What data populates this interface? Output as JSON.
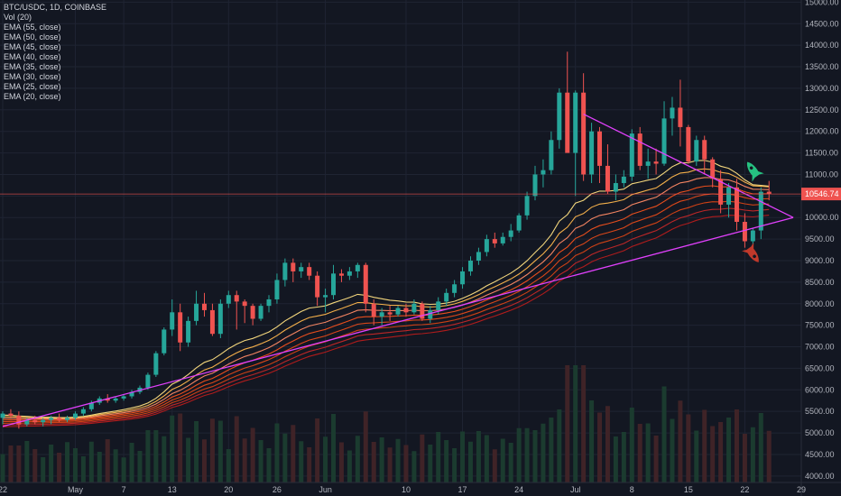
{
  "chart_data": {
    "type": "candlestick",
    "symbol_line": "BTC/USDC, 1D, COINBASE",
    "legend": [
      "Vol (20)",
      "EMA (55, close)",
      "EMA (50, close)",
      "EMA (45, close)",
      "EMA (40, close)",
      "EMA (35, close)",
      "EMA (30, close)",
      "EMA (25, close)",
      "EMA (20, close)"
    ],
    "y_ticks": [
      4000,
      4500,
      5000,
      5500,
      6000,
      6500,
      7000,
      7500,
      8000,
      8500,
      9000,
      9500,
      10000,
      10500,
      11000,
      11500,
      12000,
      12500,
      13000,
      13500,
      14000,
      14500,
      15000
    ],
    "y_tick_labels": [
      "4000.00",
      "4500.00",
      "5000.00",
      "5500.00",
      "6000.00",
      "6500.00",
      "7000.00",
      "7500.00",
      "8000.00",
      "8500.00",
      "9000.00",
      "9500.00",
      "10000.00",
      "10500.00",
      "11000.00",
      "11500.00",
      "12000.00",
      "12500.00",
      "13000.00",
      "13500.00",
      "14000.00",
      "14500.00",
      "15000.00"
    ],
    "ylim": [
      3850,
      15050
    ],
    "x_axis_labels": [
      {
        "label": "22",
        "day": 0
      },
      {
        "label": "May",
        "day": 9
      },
      {
        "label": "7",
        "day": 15
      },
      {
        "label": "13",
        "day": 21
      },
      {
        "label": "20",
        "day": 28
      },
      {
        "label": "26",
        "day": 34
      },
      {
        "label": "Jun",
        "day": 40
      },
      {
        "label": "10",
        "day": 50
      },
      {
        "label": "17",
        "day": 57
      },
      {
        "label": "24",
        "day": 64
      },
      {
        "label": "Jul",
        "day": 71
      },
      {
        "label": "8",
        "day": 78
      },
      {
        "label": "15",
        "day": 85
      },
      {
        "label": "22",
        "day": 92
      },
      {
        "label": "29",
        "day": 99
      }
    ],
    "xlim_days": [
      0,
      99
    ],
    "current_price": 10546.74,
    "current_price_label": "10546.74",
    "candles": [
      {
        "o": 5350,
        "h": 5500,
        "l": 5200,
        "c": 5450
      },
      {
        "o": 5450,
        "h": 5550,
        "l": 5350,
        "c": 5400
      },
      {
        "o": 5400,
        "h": 5500,
        "l": 5100,
        "c": 5200
      },
      {
        "o": 5200,
        "h": 5350,
        "l": 5150,
        "c": 5300
      },
      {
        "o": 5300,
        "h": 5400,
        "l": 5200,
        "c": 5250
      },
      {
        "o": 5250,
        "h": 5350,
        "l": 5150,
        "c": 5300
      },
      {
        "o": 5300,
        "h": 5400,
        "l": 5200,
        "c": 5350
      },
      {
        "o": 5350,
        "h": 5450,
        "l": 5250,
        "c": 5300
      },
      {
        "o": 5300,
        "h": 5400,
        "l": 5250,
        "c": 5350
      },
      {
        "o": 5350,
        "h": 5500,
        "l": 5300,
        "c": 5450
      },
      {
        "o": 5450,
        "h": 5600,
        "l": 5400,
        "c": 5550
      },
      {
        "o": 5550,
        "h": 5750,
        "l": 5500,
        "c": 5700
      },
      {
        "o": 5700,
        "h": 5850,
        "l": 5650,
        "c": 5800
      },
      {
        "o": 5800,
        "h": 5900,
        "l": 5700,
        "c": 5750
      },
      {
        "o": 5750,
        "h": 5850,
        "l": 5700,
        "c": 5800
      },
      {
        "o": 5800,
        "h": 5900,
        "l": 5750,
        "c": 5850
      },
      {
        "o": 5850,
        "h": 6000,
        "l": 5800,
        "c": 5950
      },
      {
        "o": 5950,
        "h": 6100,
        "l": 5900,
        "c": 6050
      },
      {
        "o": 6050,
        "h": 6400,
        "l": 6000,
        "c": 6350
      },
      {
        "o": 6350,
        "h": 6900,
        "l": 6300,
        "c": 6850
      },
      {
        "o": 6850,
        "h": 7450,
        "l": 6800,
        "c": 7400
      },
      {
        "o": 7400,
        "h": 8100,
        "l": 7250,
        "c": 7800
      },
      {
        "o": 7800,
        "h": 8000,
        "l": 6900,
        "c": 7100
      },
      {
        "o": 7100,
        "h": 7700,
        "l": 7000,
        "c": 7600
      },
      {
        "o": 7600,
        "h": 8300,
        "l": 7500,
        "c": 8000
      },
      {
        "o": 8000,
        "h": 8250,
        "l": 7700,
        "c": 7850
      },
      {
        "o": 7850,
        "h": 8000,
        "l": 7250,
        "c": 7300
      },
      {
        "o": 7300,
        "h": 8100,
        "l": 7200,
        "c": 8000
      },
      {
        "o": 8000,
        "h": 8300,
        "l": 7900,
        "c": 8200
      },
      {
        "o": 8200,
        "h": 8300,
        "l": 7400,
        "c": 8050
      },
      {
        "o": 8050,
        "h": 8100,
        "l": 7550,
        "c": 7950
      },
      {
        "o": 7950,
        "h": 8000,
        "l": 7500,
        "c": 7650
      },
      {
        "o": 7650,
        "h": 8000,
        "l": 7600,
        "c": 7950
      },
      {
        "o": 7950,
        "h": 8200,
        "l": 7800,
        "c": 8100
      },
      {
        "o": 8100,
        "h": 8700,
        "l": 8000,
        "c": 8550
      },
      {
        "o": 8550,
        "h": 9050,
        "l": 8400,
        "c": 8950
      },
      {
        "o": 8950,
        "h": 9050,
        "l": 8500,
        "c": 8750
      },
      {
        "o": 8750,
        "h": 8950,
        "l": 8600,
        "c": 8850
      },
      {
        "o": 8850,
        "h": 8950,
        "l": 8550,
        "c": 8650
      },
      {
        "o": 8650,
        "h": 8750,
        "l": 7950,
        "c": 8150
      },
      {
        "o": 8150,
        "h": 8350,
        "l": 7800,
        "c": 8200
      },
      {
        "o": 8200,
        "h": 8900,
        "l": 8100,
        "c": 8700
      },
      {
        "o": 8700,
        "h": 8800,
        "l": 8500,
        "c": 8650
      },
      {
        "o": 8650,
        "h": 8850,
        "l": 8550,
        "c": 8750
      },
      {
        "o": 8750,
        "h": 8950,
        "l": 8600,
        "c": 8900
      },
      {
        "o": 8900,
        "h": 8950,
        "l": 7800,
        "c": 8000
      },
      {
        "o": 8000,
        "h": 8100,
        "l": 7500,
        "c": 7700
      },
      {
        "o": 7700,
        "h": 7900,
        "l": 7500,
        "c": 7800
      },
      {
        "o": 7800,
        "h": 7950,
        "l": 7600,
        "c": 7750
      },
      {
        "o": 7750,
        "h": 7950,
        "l": 7700,
        "c": 7900
      },
      {
        "o": 7900,
        "h": 8000,
        "l": 7700,
        "c": 7800
      },
      {
        "o": 7800,
        "h": 8100,
        "l": 7750,
        "c": 8000
      },
      {
        "o": 8000,
        "h": 8050,
        "l": 7600,
        "c": 7650
      },
      {
        "o": 7650,
        "h": 7950,
        "l": 7550,
        "c": 7850
      },
      {
        "o": 7850,
        "h": 8150,
        "l": 7750,
        "c": 8050
      },
      {
        "o": 8050,
        "h": 8350,
        "l": 7950,
        "c": 8250
      },
      {
        "o": 8250,
        "h": 8550,
        "l": 8150,
        "c": 8450
      },
      {
        "o": 8450,
        "h": 8850,
        "l": 8350,
        "c": 8750
      },
      {
        "o": 8750,
        "h": 9100,
        "l": 8650,
        "c": 9000
      },
      {
        "o": 9000,
        "h": 9300,
        "l": 8900,
        "c": 9200
      },
      {
        "o": 9200,
        "h": 9600,
        "l": 9100,
        "c": 9500
      },
      {
        "o": 9500,
        "h": 9650,
        "l": 9300,
        "c": 9400
      },
      {
        "o": 9400,
        "h": 9650,
        "l": 9350,
        "c": 9550
      },
      {
        "o": 9550,
        "h": 9850,
        "l": 9450,
        "c": 9700
      },
      {
        "o": 9700,
        "h": 10100,
        "l": 9650,
        "c": 10050
      },
      {
        "o": 10050,
        "h": 10600,
        "l": 9950,
        "c": 10500
      },
      {
        "o": 10500,
        "h": 11200,
        "l": 10400,
        "c": 11000
      },
      {
        "o": 11000,
        "h": 11350,
        "l": 10700,
        "c": 11100
      },
      {
        "o": 11100,
        "h": 12000,
        "l": 11000,
        "c": 11800
      },
      {
        "o": 11800,
        "h": 13000,
        "l": 11600,
        "c": 12900
      },
      {
        "o": 12900,
        "h": 13850,
        "l": 11600,
        "c": 11500
      },
      {
        "o": 11500,
        "h": 12950,
        "l": 10500,
        "c": 12900
      },
      {
        "o": 12900,
        "h": 13350,
        "l": 10850,
        "c": 11000
      },
      {
        "o": 11000,
        "h": 12200,
        "l": 10800,
        "c": 12000
      },
      {
        "o": 12000,
        "h": 12100,
        "l": 10800,
        "c": 11200
      },
      {
        "o": 11200,
        "h": 11700,
        "l": 10550,
        "c": 10600
      },
      {
        "o": 10600,
        "h": 11000,
        "l": 10400,
        "c": 10800
      },
      {
        "o": 10800,
        "h": 11100,
        "l": 10700,
        "c": 10950
      },
      {
        "o": 10950,
        "h": 12050,
        "l": 10850,
        "c": 11950
      },
      {
        "o": 11950,
        "h": 12100,
        "l": 11100,
        "c": 11200
      },
      {
        "o": 11200,
        "h": 11600,
        "l": 10900,
        "c": 11300
      },
      {
        "o": 11300,
        "h": 11600,
        "l": 11000,
        "c": 11250
      },
      {
        "o": 11250,
        "h": 12700,
        "l": 11200,
        "c": 12300
      },
      {
        "o": 12300,
        "h": 12800,
        "l": 11900,
        "c": 12550
      },
      {
        "o": 12550,
        "h": 13200,
        "l": 11650,
        "c": 12100
      },
      {
        "o": 12100,
        "h": 12150,
        "l": 11250,
        "c": 11300
      },
      {
        "o": 11300,
        "h": 11900,
        "l": 11200,
        "c": 11800
      },
      {
        "o": 11800,
        "h": 11900,
        "l": 11000,
        "c": 11350
      },
      {
        "o": 11350,
        "h": 11400,
        "l": 10700,
        "c": 10900
      },
      {
        "o": 10900,
        "h": 11100,
        "l": 10100,
        "c": 10300
      },
      {
        "o": 10300,
        "h": 10800,
        "l": 10000,
        "c": 10700
      },
      {
        "o": 10700,
        "h": 10900,
        "l": 9700,
        "c": 9900
      },
      {
        "o": 9900,
        "h": 10100,
        "l": 9300,
        "c": 9450
      },
      {
        "o": 9450,
        "h": 9750,
        "l": 9100,
        "c": 9700
      },
      {
        "o": 9700,
        "h": 10700,
        "l": 9500,
        "c": 10600
      },
      {
        "o": 10600,
        "h": 10850,
        "l": 10400,
        "c": 10550
      }
    ],
    "trendlines": [
      {
        "name": "upper",
        "from": {
          "day": 72,
          "price": 12400
        },
        "to": {
          "day": 98,
          "price": 10000
        }
      },
      {
        "name": "lower",
        "from": {
          "day": 0,
          "price": 5150
        },
        "to": {
          "day": 98,
          "price": 10000
        }
      }
    ],
    "ema_periods": [
      55,
      50,
      45,
      40,
      35,
      30,
      25,
      20
    ],
    "ema_colors": [
      "#b71c1c",
      "#c62828",
      "#d84315",
      "#e64a19",
      "#f4511e",
      "#ff8a65",
      "#ffb74d",
      "#ffe082"
    ],
    "colors": {
      "up": "#26a69a",
      "down": "#ef5350",
      "trend": "#e040fb",
      "price_line": "#ef5350",
      "grid": "#1f2433",
      "volume_up": "#1b3b2f",
      "volume_down": "#3f2327"
    },
    "annotations": [
      {
        "name": "green-rocket-icon",
        "day": 93,
        "price": 11100,
        "color": "#26c281"
      },
      {
        "name": "red-rocket-icon",
        "day": 93,
        "price": 9150,
        "color": "#c0392b"
      }
    ]
  }
}
